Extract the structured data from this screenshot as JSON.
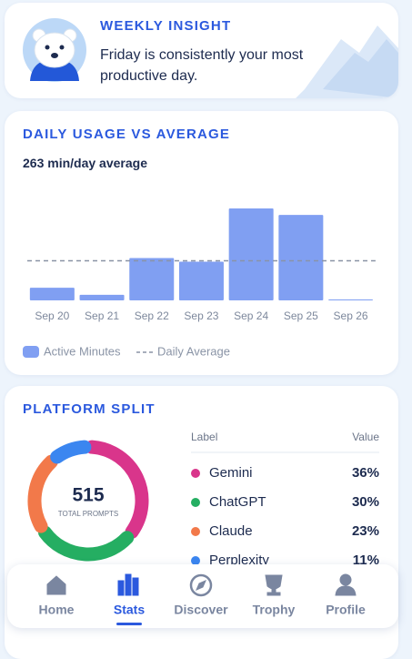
{
  "insight": {
    "title": "WEEKLY INSIGHT",
    "text": "Friday is consistently your most productive day."
  },
  "chart_data": [
    {
      "type": "bar",
      "title": "DAILY USAGE VS AVERAGE",
      "average": 263,
      "average_unit": "min/day average",
      "categories": [
        "Sep 20",
        "Sep 21",
        "Sep 22",
        "Sep 23",
        "Sep 24",
        "Sep 25",
        "Sep 26"
      ],
      "series": [
        {
          "name": "Active Minutes",
          "color": "#809ff2",
          "values": [
            84,
            37,
            281,
            257,
            610,
            567,
            6
          ]
        }
      ],
      "average_name": "Daily Average",
      "average_color": "#8a93a6"
    },
    {
      "type": "pie",
      "title": "PLATFORM SPLIT",
      "center_value": 515,
      "center_label": "TOTAL PROMPTS",
      "table_headers": [
        "Label",
        "Value"
      ],
      "categories": [
        "Gemini",
        "ChatGPT",
        "Claude",
        "Perplexity"
      ],
      "values": [
        36,
        30,
        23,
        11
      ],
      "value_labels": [
        "36%",
        "30%",
        "23%",
        "11%"
      ],
      "colors": [
        "#d9358b",
        "#25ae62",
        "#f2794a",
        "#3b86f0"
      ]
    }
  ],
  "nav": {
    "items": [
      "Home",
      "Stats",
      "Discover",
      "Trophy",
      "Profile"
    ],
    "active": 1
  }
}
